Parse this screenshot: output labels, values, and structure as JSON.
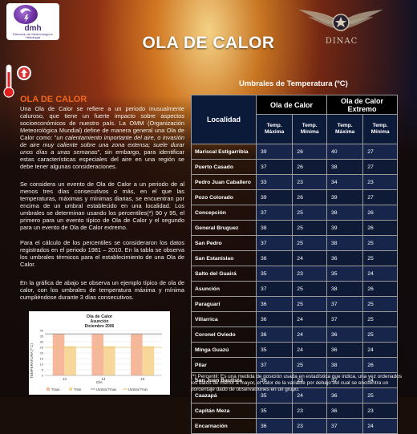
{
  "header": {
    "logo_text": "dmh",
    "logo_subtext": "Dirección de Meteorología e Hidrología",
    "page_title": "OLA DE CALOR",
    "right_logo_text": "DINAC"
  },
  "section": {
    "title": "OLA DE CALOR",
    "p1_a": "Una Ola de Calor se refiere a un periodo inusualmente caluroso, que tiene un fuerte impacto sobre aspectos socioeconómicos de nuestro país. La OMM (Organización Meteorológica Mundial) define de manera general una Ola de Calor como: \"",
    "p1_em": "un calentamiento importante del aire, o invasión de aire muy caliente sobre una zona extensa; suele durar unos días a unas semanas",
    "p1_b": "\", sin embargo, para identificar estas características especiales del aire en una región se debe tener algunas consideraciones.",
    "p2": "Se considera un evento de Ola de Calor a un periodo de al menos tres días consecutivos o más, en el que las temperaturas, máximas y mínimas diarias, se encuentran por encima de un umbral establecido en una localidad. Los umbrales se determinan usando los percentiles(*) 90 y 95, el primero para un evento típico de Ola de Calor y el segundo para un evento de Ola de Calor extremo.",
    "p3": "Para el cálculo de los percentiles se consideraron los datos registrados en el periodo 1981 – 2010. En la tabla se observa los umbrales térmicos para el establecimiento de una Ola de Calor.",
    "p4": "En la gráfica de abajo se observa un ejemplo típico de ola de calor, con los umbrales de temperatura máxima y mínima cumpliéndose durante 3 días consecutivos."
  },
  "chart_data": {
    "type": "bar",
    "title": "Ola de Calor",
    "subtitle_1": "Asunción",
    "subtitle_2": "Diciembre 2006",
    "xlabel": "DÍA",
    "ylabel": "TEMPERATURA (º C)",
    "categories": [
      "13",
      "14",
      "15"
    ],
    "ylim": [
      0,
      40
    ],
    "yticks": [
      0,
      5,
      10,
      15,
      20,
      25,
      30,
      35,
      40
    ],
    "series": [
      {
        "name": "Tmax",
        "values": [
          37,
          37,
          37
        ],
        "color": "#f6b89a"
      },
      {
        "name": "Tmin",
        "values": [
          26,
          26,
          26
        ],
        "color": "#f7d79a"
      }
    ],
    "thresholds": [
      {
        "name": "Umbral Tmax",
        "value": 37,
        "color": "#8c8c8c"
      },
      {
        "name": "Umbral Tmin",
        "value": 25,
        "color": "#e8c46a"
      }
    ]
  },
  "table": {
    "caption": "Umbrales  de Temperatura (ºC)",
    "col_localidad": "Localidad",
    "group1": "Ola de Calor",
    "group2_l1": "Ola de Calor",
    "group2_l2": "Extremo",
    "sub_max_l1": "Temp.",
    "sub_max_l2": "Máxima",
    "sub_min_l1": "Temp.",
    "sub_min_l2": "Mínima",
    "rows": [
      {
        "loc": "Mariscal Estigarribia",
        "v": [
          "39",
          "26",
          "40",
          "27"
        ]
      },
      {
        "loc": "Puerto Casado",
        "v": [
          "37",
          "26",
          "38",
          "27"
        ]
      },
      {
        "loc": "Pedro Juan Caballero",
        "v": [
          "33",
          "23",
          "34",
          "23"
        ]
      },
      {
        "loc": "Pozo Colorado",
        "v": [
          "39",
          "26",
          "39",
          "27"
        ]
      },
      {
        "loc": "Concepción",
        "v": [
          "37",
          "25",
          "38",
          "26"
        ]
      },
      {
        "loc": "General Bruguez",
        "v": [
          "38",
          "25",
          "39",
          "26"
        ]
      },
      {
        "loc": "San Pedro",
        "v": [
          "37",
          "25",
          "38",
          "25"
        ]
      },
      {
        "loc": "San Estanislao",
        "v": [
          "36",
          "24",
          "36",
          "25"
        ]
      },
      {
        "loc": "Salto del Guairá",
        "v": [
          "35",
          "23",
          "35",
          "24"
        ]
      },
      {
        "loc": "Asunción",
        "v": [
          "37",
          "25",
          "38",
          "26"
        ]
      },
      {
        "loc": "Paraguarí",
        "v": [
          "36",
          "25",
          "37",
          "25"
        ]
      },
      {
        "loc": "Villarrica",
        "v": [
          "36",
          "24",
          "37",
          "25"
        ]
      },
      {
        "loc": "Coronel Oviedo",
        "v": [
          "36",
          "24",
          "36",
          "25"
        ]
      },
      {
        "loc": "Minga Guazú",
        "v": [
          "35",
          "24",
          "36",
          "24"
        ]
      },
      {
        "loc": "Pilar",
        "v": [
          "37",
          "25",
          "38",
          "26"
        ]
      },
      {
        "loc": "San Juan Bautista",
        "v": [
          "36",
          "23",
          "37",
          "24"
        ]
      },
      {
        "loc": "Caazapá",
        "v": [
          "35",
          "24",
          "36",
          "25"
        ]
      },
      {
        "loc": "Capitán Meza",
        "v": [
          "35",
          "23",
          "36",
          "23"
        ]
      },
      {
        "loc": "Encarnación",
        "v": [
          "36",
          "23",
          "37",
          "24"
        ]
      }
    ]
  },
  "footnote": "(*) Percentil: Es una medida de posición usada en estadística que indica, una vez ordenados los datos de menor a mayor, el valor de la variable por debajo del cual se encuentra un porcentaje dado de observaciones en un grupo.",
  "icons": [
    "thermometer-icon",
    "arrow-up-icon"
  ]
}
